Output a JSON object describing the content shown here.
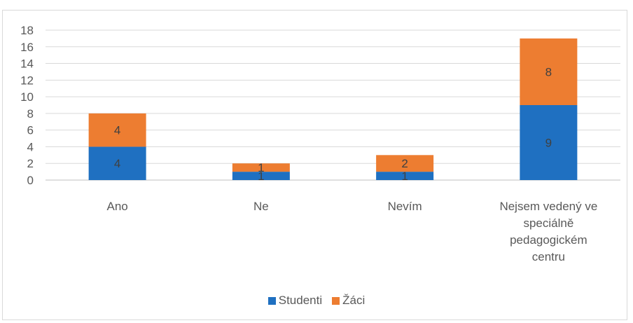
{
  "chart_data": {
    "type": "bar",
    "stacked": true,
    "categories": [
      "Ano",
      "Ne",
      "Nevím",
      "Nejsem vedený ve speciálně pedagogickém centru"
    ],
    "category_lines": [
      [
        "Ano"
      ],
      [
        "Ne"
      ],
      [
        "Nevím"
      ],
      [
        "Nejsem vedený ve",
        "speciálně",
        "pedagogickém",
        "centru"
      ]
    ],
    "series": [
      {
        "name": "Studenti",
        "color": "#1f70c1",
        "values": [
          4,
          1,
          1,
          9
        ]
      },
      {
        "name": "Žáci",
        "color": "#ed7d31",
        "values": [
          4,
          1,
          2,
          8
        ]
      }
    ],
    "ylim": [
      0,
      18
    ],
    "yticks": [
      "0",
      "2",
      "4",
      "6",
      "8",
      "10",
      "12",
      "14",
      "16",
      "18"
    ],
    "grid": true,
    "legend": "bottom",
    "title": "",
    "xlabel": "",
    "ylabel": ""
  }
}
